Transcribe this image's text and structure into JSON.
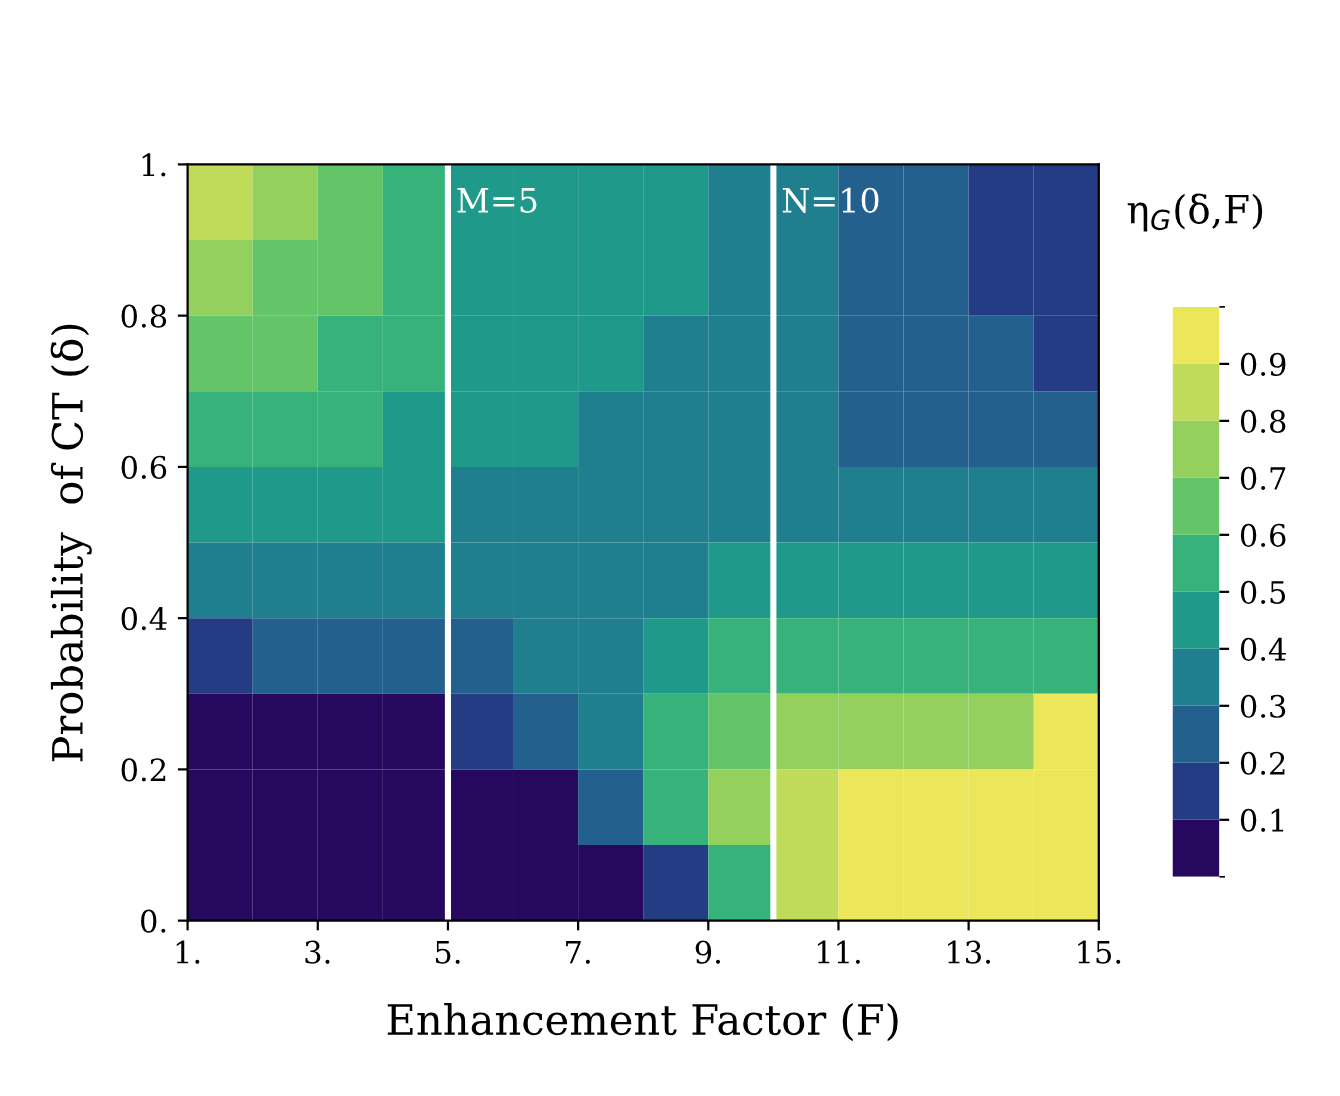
{
  "chart_data": {
    "type": "heatmap",
    "xlabel": "Enhancement Factor (F)",
    "ylabel": "Probability  of CT (δ)",
    "clabel": "η$_{G}$(δ,F)",
    "x": [
      1.5,
      2.5,
      3.5,
      4.5,
      5.5,
      6.5,
      7.5,
      8.5,
      9.5,
      10.5,
      11.5,
      12.5,
      13.5,
      14.5
    ],
    "y": [
      0.95,
      0.85,
      0.75,
      0.65,
      0.55,
      0.45,
      0.35,
      0.25,
      0.15,
      0.05
    ],
    "cells": [
      [
        0.85,
        0.75,
        0.65,
        0.55,
        0.45,
        0.45,
        0.45,
        0.45,
        0.35,
        0.35,
        0.25,
        0.25,
        0.15,
        0.15
      ],
      [
        0.75,
        0.65,
        0.65,
        0.55,
        0.45,
        0.45,
        0.45,
        0.45,
        0.35,
        0.35,
        0.25,
        0.25,
        0.15,
        0.15
      ],
      [
        0.65,
        0.65,
        0.55,
        0.55,
        0.45,
        0.45,
        0.45,
        0.35,
        0.35,
        0.35,
        0.25,
        0.25,
        0.25,
        0.15
      ],
      [
        0.55,
        0.55,
        0.55,
        0.45,
        0.45,
        0.45,
        0.35,
        0.35,
        0.35,
        0.35,
        0.25,
        0.25,
        0.25,
        0.25
      ],
      [
        0.45,
        0.45,
        0.45,
        0.45,
        0.35,
        0.35,
        0.35,
        0.35,
        0.35,
        0.35,
        0.35,
        0.35,
        0.35,
        0.35
      ],
      [
        0.35,
        0.35,
        0.35,
        0.35,
        0.35,
        0.35,
        0.35,
        0.35,
        0.45,
        0.45,
        0.45,
        0.45,
        0.45,
        0.45
      ],
      [
        0.15,
        0.25,
        0.25,
        0.25,
        0.25,
        0.35,
        0.35,
        0.45,
        0.55,
        0.55,
        0.55,
        0.55,
        0.55,
        0.55
      ],
      [
        0.05,
        0.05,
        0.05,
        0.05,
        0.15,
        0.25,
        0.35,
        0.55,
        0.65,
        0.75,
        0.75,
        0.75,
        0.75,
        0.95
      ],
      [
        0.05,
        0.05,
        0.05,
        0.05,
        0.05,
        0.05,
        0.25,
        0.55,
        0.75,
        0.85,
        0.95,
        0.95,
        0.95,
        0.95
      ],
      [
        0.05,
        0.05,
        0.05,
        0.05,
        0.05,
        0.05,
        0.05,
        0.15,
        0.55,
        0.85,
        0.95,
        0.95,
        0.95,
        0.95
      ]
    ],
    "colors": [
      "#26085e",
      "#243c84",
      "#24608e",
      "#1f7f8e",
      "#1f9a8a",
      "#37b27a",
      "#64c468",
      "#93d05d",
      "#c0db5a",
      "#ece65a"
    ],
    "clim": [
      0,
      1
    ],
    "cticks": [
      0.1,
      0.2,
      0.3,
      0.4,
      0.5,
      0.6,
      0.7,
      0.8,
      0.9
    ],
    "xlim": [
      1,
      15
    ],
    "ylim": [
      0,
      1
    ],
    "xticks": [
      {
        "value": 1,
        "label": "1."
      },
      {
        "value": 3,
        "label": "3."
      },
      {
        "value": 5,
        "label": "5."
      },
      {
        "value": 7,
        "label": "7."
      },
      {
        "value": 9,
        "label": "9."
      },
      {
        "value": 11,
        "label": "11."
      },
      {
        "value": 13,
        "label": "13."
      },
      {
        "value": 15,
        "label": "15."
      }
    ],
    "yticks": [
      {
        "value": 0,
        "label": "0."
      },
      0.2,
      0.4,
      0.6,
      0.8,
      {
        "value": 1,
        "label": "1."
      }
    ],
    "ref_lines": [
      {
        "axis": "x",
        "value": 5,
        "label": "M=5",
        "color": "#ffffff"
      },
      {
        "axis": "x",
        "value": 10,
        "label": "N=10",
        "color": "#ffffff"
      }
    ],
    "grid": false
  }
}
